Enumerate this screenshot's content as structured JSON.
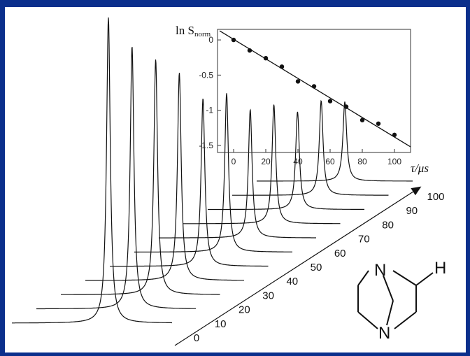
{
  "chart_data": [
    {
      "type": "line",
      "title": "",
      "xlabel": "τ/μs",
      "x_ticks": [
        "0",
        "10",
        "20",
        "30",
        "40",
        "50",
        "60",
        "70",
        "80",
        "90",
        "100"
      ],
      "series": [
        {
          "x": 0,
          "peak_height": 1.0
        },
        {
          "x": 10,
          "peak_height": 0.86
        },
        {
          "x": 20,
          "peak_height": 0.77
        },
        {
          "x": 30,
          "peak_height": 0.68
        },
        {
          "x": 40,
          "peak_height": 0.55
        },
        {
          "x": 50,
          "peak_height": 0.52
        },
        {
          "x": 60,
          "peak_height": 0.42
        },
        {
          "x": 70,
          "peak_height": 0.39
        },
        {
          "x": 80,
          "peak_height": 0.32
        },
        {
          "x": 90,
          "peak_height": 0.31
        },
        {
          "x": 100,
          "peak_height": 0.26
        }
      ]
    },
    {
      "type": "scatter",
      "title": "",
      "ylabel_main": "ln S",
      "ylabel_sub": "norm",
      "xlim": [
        -10,
        110
      ],
      "ylim": [
        -1.6,
        0.15
      ],
      "x_ticks": [
        "0",
        "20",
        "40",
        "60",
        "80",
        "100"
      ],
      "y_ticks": [
        "0",
        "-0.5",
        "-1",
        "-1.5"
      ],
      "x_tick_values": [
        0,
        20,
        40,
        60,
        80,
        100
      ],
      "y_tick_values": [
        0,
        -0.5,
        -1,
        -1.5
      ],
      "points": [
        {
          "x": 0,
          "y": 0.0
        },
        {
          "x": 10,
          "y": -0.15
        },
        {
          "x": 20,
          "y": -0.26
        },
        {
          "x": 30,
          "y": -0.38
        },
        {
          "x": 40,
          "y": -0.59
        },
        {
          "x": 50,
          "y": -0.66
        },
        {
          "x": 60,
          "y": -0.87
        },
        {
          "x": 70,
          "y": -0.95
        },
        {
          "x": 80,
          "y": -1.14
        },
        {
          "x": 90,
          "y": -1.19
        },
        {
          "x": 100,
          "y": -1.35
        }
      ],
      "fit_line": {
        "x": [
          -10,
          110
        ],
        "y": [
          0.13,
          -1.52
        ]
      }
    }
  ],
  "molecule": {
    "atoms": [
      "N",
      "N",
      "H"
    ],
    "highlight_color": "#e8121b"
  },
  "colors": {
    "frame": "#0b2f8c",
    "line": "#111111"
  }
}
